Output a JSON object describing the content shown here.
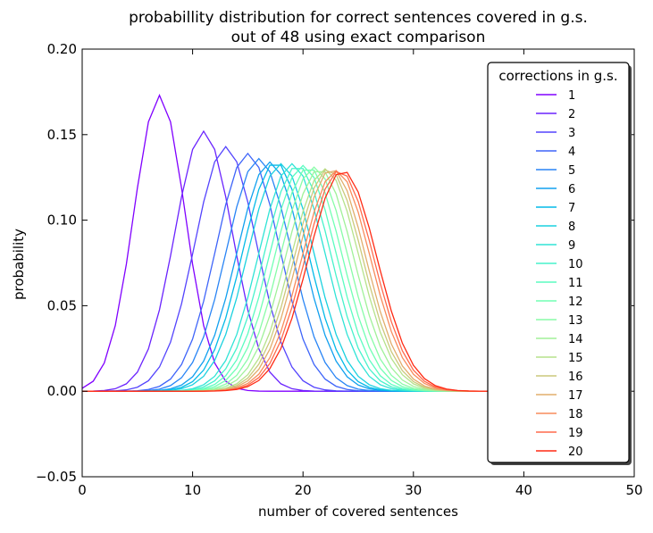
{
  "chart_data": {
    "type": "line",
    "title": "probabillity distribution for correct sentences covered in g.s.",
    "subtitle": "out of 48 using exact comparison",
    "xlabel": "number of covered sentences",
    "ylabel": "probability",
    "xlim": [
      0,
      50
    ],
    "ylim": [
      -0.05,
      0.2
    ],
    "xticks": [
      "0",
      "10",
      "20",
      "30",
      "40",
      "50"
    ],
    "yticks": [
      "−0.05",
      "0.00",
      "0.05",
      "0.10",
      "0.15",
      "0.20"
    ],
    "grid": false,
    "legend": {
      "title": "corrections in g.s.",
      "placement": "right"
    },
    "colormap": "rainbow",
    "x": [
      0,
      1,
      2,
      3,
      4,
      5,
      6,
      7,
      8,
      9,
      10,
      11,
      12,
      13,
      14,
      15,
      16,
      17,
      18,
      19,
      20,
      21,
      22,
      23,
      24,
      25,
      26,
      27,
      28,
      29,
      30,
      31,
      32,
      33,
      34,
      35,
      36,
      37,
      38,
      39,
      40,
      41,
      42,
      43,
      44,
      45,
      46,
      47,
      48
    ],
    "series": [
      {
        "name": "1",
        "color": "#8000ff",
        "peak_x": 7,
        "peak_y": 0.173
      },
      {
        "name": "2",
        "color": "#6a23fe",
        "peak_x": 11,
        "peak_y": 0.152
      },
      {
        "name": "3",
        "color": "#5444fd",
        "peak_x": 13,
        "peak_y": 0.143
      },
      {
        "name": "4",
        "color": "#3e64f9",
        "peak_x": 15,
        "peak_y": 0.139
      },
      {
        "name": "5",
        "color": "#2884f5",
        "peak_x": 16,
        "peak_y": 0.136
      },
      {
        "name": "6",
        "color": "#12a0ef",
        "peak_x": 17,
        "peak_y": 0.134
      },
      {
        "name": "7",
        "color": "#04bae8",
        "peak_x": 17.5,
        "peak_y": 0.134
      },
      {
        "name": "8",
        "color": "#1ad1df",
        "peak_x": 18,
        "peak_y": 0.133
      },
      {
        "name": "9",
        "color": "#30e3d6",
        "peak_x": 19,
        "peak_y": 0.133
      },
      {
        "name": "10",
        "color": "#46f2cb",
        "peak_x": 19.5,
        "peak_y": 0.132
      },
      {
        "name": "11",
        "color": "#5cfcc0",
        "peak_x": 20,
        "peak_y": 0.132
      },
      {
        "name": "12",
        "color": "#72ffb4",
        "peak_x": 20.5,
        "peak_y": 0.131
      },
      {
        "name": "13",
        "color": "#88fca7",
        "peak_x": 21,
        "peak_y": 0.131
      },
      {
        "name": "14",
        "color": "#a0f199",
        "peak_x": 21.5,
        "peak_y": 0.13
      },
      {
        "name": "15",
        "color": "#b6e28b",
        "peak_x": 22,
        "peak_y": 0.13
      },
      {
        "name": "16",
        "color": "#ccc97c",
        "peak_x": 22.3,
        "peak_y": 0.13
      },
      {
        "name": "17",
        "color": "#e2ad6c",
        "peak_x": 22.6,
        "peak_y": 0.13
      },
      {
        "name": "18",
        "color": "#f88c5c",
        "peak_x": 23,
        "peak_y": 0.129
      },
      {
        "name": "19",
        "color": "#ff6a4c",
        "peak_x": 23.3,
        "peak_y": 0.129
      },
      {
        "name": "20",
        "color": "#ff2a14",
        "peak_x": 23.6,
        "peak_y": 0.129
      }
    ],
    "values_note_excluded": true
  }
}
